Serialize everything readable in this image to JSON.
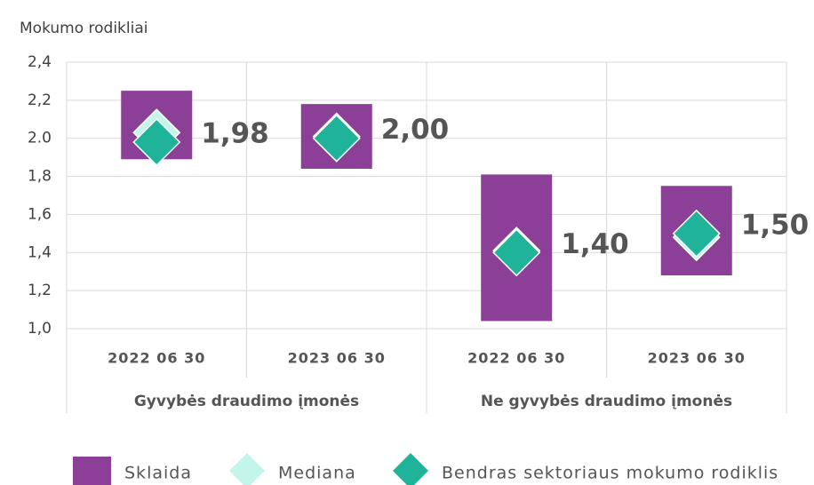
{
  "chart_data": {
    "type": "range-marker",
    "y_label": "Mokumo rodikliai",
    "categories": [
      "2022 06 30",
      "2023 06 30",
      "2022 06 30",
      "2023 06 30"
    ],
    "groups": [
      {
        "label": "Gyvybės draudimo įmonės",
        "size": 2
      },
      {
        "label": "Ne gyvybės draudimo įmonės",
        "size": 2
      }
    ],
    "ylim": [
      1.0,
      2.4
    ],
    "yticks": [
      {
        "value": 1.0,
        "label": "1,0"
      },
      {
        "value": 1.2,
        "label": "1,2"
      },
      {
        "value": 1.4,
        "label": "1,4"
      },
      {
        "value": 1.6,
        "label": "1,6"
      },
      {
        "value": 1.8,
        "label": "1,8"
      },
      {
        "value": 2.0,
        "label": "2.0"
      },
      {
        "value": 2.2,
        "label": "2,2"
      },
      {
        "value": 2.4,
        "label": "2,4"
      }
    ],
    "grid": true,
    "series": [
      {
        "name": "Sklaida",
        "kind": "range",
        "color": "#8b3f96",
        "values": [
          [
            1.89,
            2.25
          ],
          [
            1.84,
            2.18
          ],
          [
            1.04,
            1.81
          ],
          [
            1.28,
            1.75
          ]
        ]
      },
      {
        "name": "Mediana",
        "kind": "diamond",
        "color": "#c4f5ea",
        "values": [
          2.03,
          2.01,
          1.41,
          1.48
        ]
      },
      {
        "name": "Bendras sektoriaus mokumo rodiklis",
        "kind": "diamond",
        "color": "#1fb39a",
        "values": [
          1.98,
          2.0,
          1.4,
          1.5
        ],
        "value_labels": [
          "1,98",
          "2,00",
          "1,40",
          "1,50"
        ]
      }
    ]
  }
}
